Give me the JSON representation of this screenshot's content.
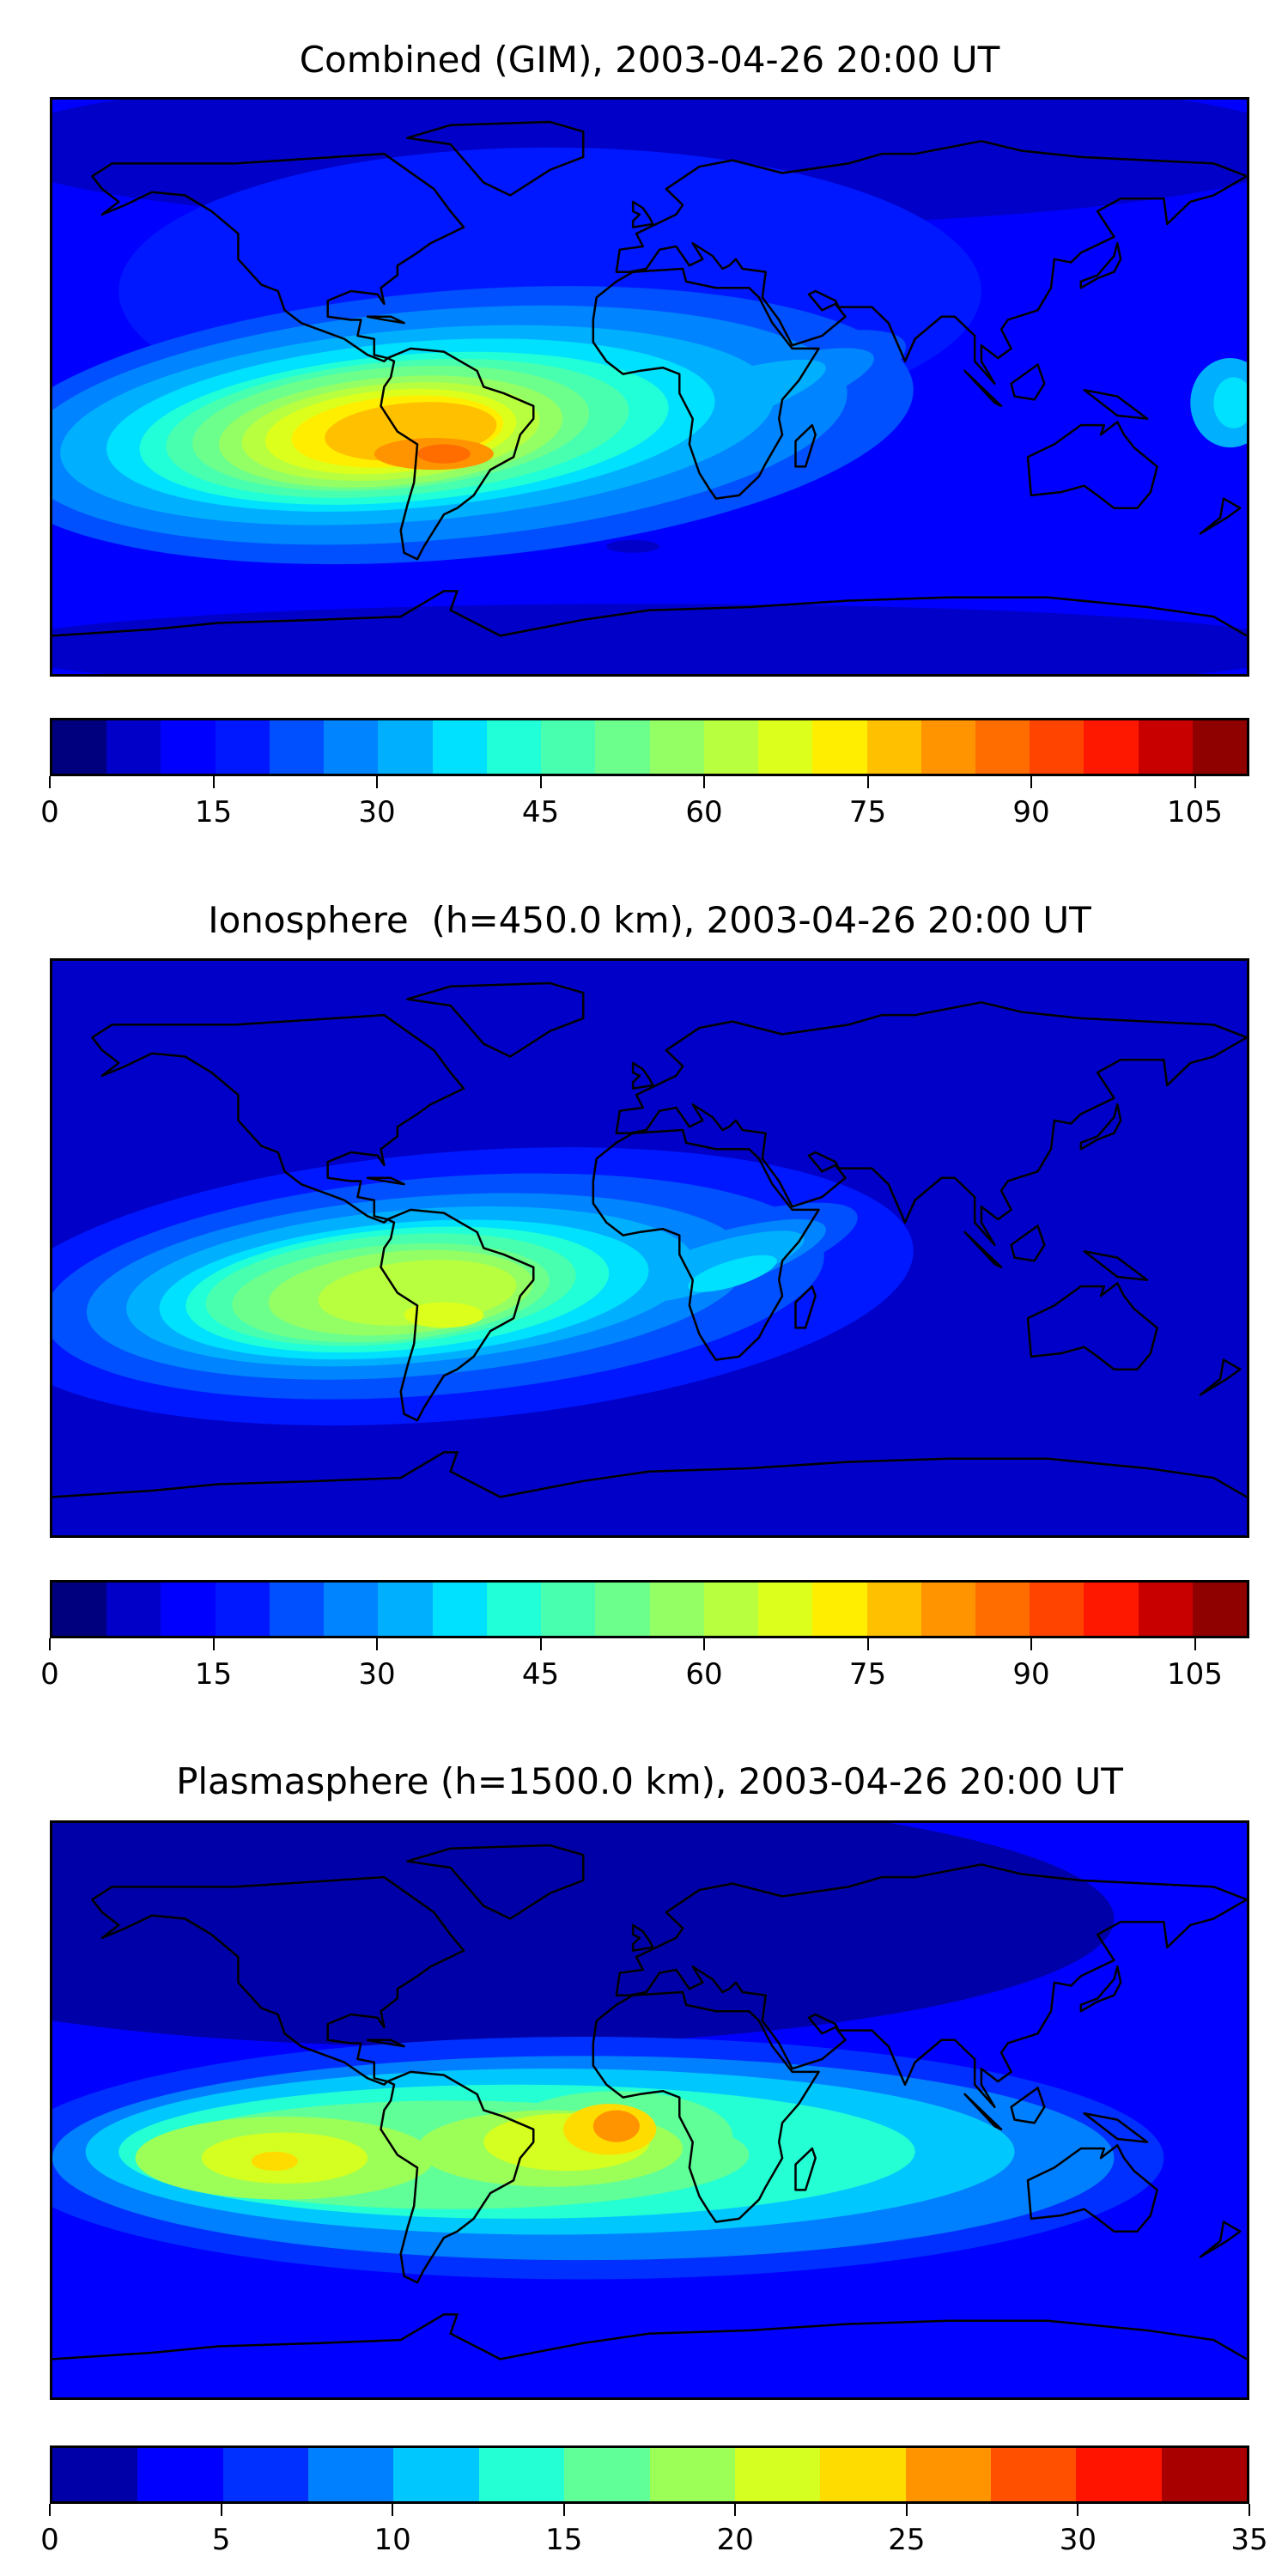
{
  "chart_data": [
    {
      "type": "heatmap",
      "title": "Combined (GIM), 2003-04-26 20:00 UT",
      "map_projection": "equirectangular global map with coastlines",
      "colorbar": {
        "range": [
          0,
          110
        ],
        "step": 5,
        "ticks": [
          "0",
          "15",
          "30",
          "45",
          "60",
          "75",
          "90",
          "105"
        ],
        "tick_values": [
          0,
          15,
          30,
          45,
          60,
          75,
          90,
          105
        ],
        "colors": [
          "#00007f",
          "#0000c8",
          "#0000ff",
          "#0018ff",
          "#0050ff",
          "#0084ff",
          "#00b0ff",
          "#00e0ff",
          "#20ffd8",
          "#48ffb0",
          "#6cff8c",
          "#94ff64",
          "#b8ff40",
          "#dcff1c",
          "#ffee00",
          "#ffc000",
          "#ff9400",
          "#ff6c00",
          "#ff4400",
          "#ff1800",
          "#c80000",
          "#8f0000"
        ]
      },
      "features": "maximum ~80-90 over South America/eastern Pacific near lat -15, band extending east to Africa; background ~10-20"
    },
    {
      "type": "heatmap",
      "title": "Ionosphere  (h=450.0 km), 2003-04-26 20:00 UT",
      "map_projection": "equirectangular global map with coastlines",
      "colorbar": {
        "range": [
          0,
          110
        ],
        "step": 5,
        "ticks": [
          "0",
          "15",
          "30",
          "45",
          "60",
          "75",
          "90",
          "105"
        ],
        "tick_values": [
          0,
          15,
          30,
          45,
          60,
          75,
          90,
          105
        ],
        "colors": [
          "#00007f",
          "#0000c8",
          "#0000ff",
          "#0018ff",
          "#0050ff",
          "#0084ff",
          "#00b0ff",
          "#00e0ff",
          "#20ffd8",
          "#48ffb0",
          "#6cff8c",
          "#94ff64",
          "#b8ff40",
          "#dcff1c",
          "#ffee00",
          "#ffc000",
          "#ff9400",
          "#ff6c00",
          "#ff4400",
          "#ff1800",
          "#c80000",
          "#8f0000"
        ]
      },
      "features": "maximum ~60-70 over South America near lat -15; background ~5-15"
    },
    {
      "type": "heatmap",
      "title": "Plasmasphere (h=1500.0 km), 2003-04-26 20:00 UT",
      "map_projection": "equirectangular global map with coastlines",
      "colorbar": {
        "range": [
          0,
          35
        ],
        "step": 2.5,
        "ticks": [
          "0",
          "5",
          "10",
          "15",
          "20",
          "25",
          "30",
          "35"
        ],
        "tick_values": [
          0,
          5,
          10,
          15,
          20,
          25,
          30,
          35
        ],
        "colors": [
          "#0000a8",
          "#0000ff",
          "#0030ff",
          "#0080ff",
          "#00c8ff",
          "#24ffd4",
          "#60ff98",
          "#9cff58",
          "#d4ff20",
          "#ffdc00",
          "#ff9400",
          "#ff5000",
          "#ff1400",
          "#a80000"
        ]
      },
      "features": "maxima ~25-27.5 over Gulf of Guinea and ~22.5 over eastern Pacific near lat -15; background ~2.5-7.5"
    }
  ]
}
